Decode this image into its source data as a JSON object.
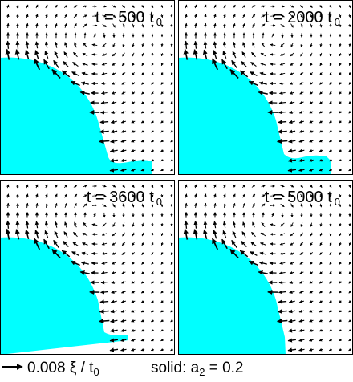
{
  "panels": [
    {
      "label": "t = 500 t",
      "subscript": "0"
    },
    {
      "label": "t = 2000 t",
      "subscript": "0"
    },
    {
      "label": "t = 3600 t",
      "subscript": "0"
    },
    {
      "label": "t = 5000 t",
      "subscript": "0"
    }
  ],
  "scale_label": {
    "text": "0.008 ξ / t",
    "subscript": "0"
  },
  "solid_label": {
    "text": "solid: a",
    "subscript": "2",
    "suffix": " = 0.2"
  }
}
